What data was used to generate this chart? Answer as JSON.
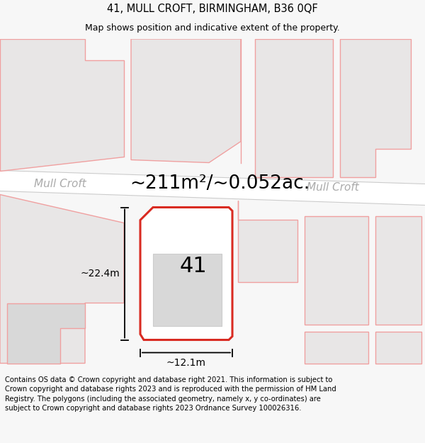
{
  "title_line1": "41, MULL CROFT, BIRMINGHAM, B36 0QF",
  "title_line2": "Map shows position and indicative extent of the property.",
  "area_text": "~211m²/~0.052ac.",
  "label_41": "41",
  "dim_width": "~12.1m",
  "dim_height": "~22.4m",
  "road_label_left": "Mull Croft",
  "road_label_right": "Mull Croft",
  "footer_text": "Contains OS data © Crown copyright and database right 2021. This information is subject to Crown copyright and database rights 2023 and is reproduced with the permission of HM Land Registry. The polygons (including the associated geometry, namely x, y co-ordinates) are subject to Crown copyright and database rights 2023 Ordnance Survey 100026316.",
  "bg_color": "#f7f7f7",
  "map_bg": "#ebebeb",
  "road_color": "#f8f8f8",
  "plot_outline_color": "#d92b22",
  "plot_fill": "#ffffff",
  "house_fill": "#d8d8d8",
  "neighbour_outline_color": "#f0a0a0",
  "neighbour_fill": "#e8e6e6",
  "title_fontsize": 10.5,
  "subtitle_fontsize": 9,
  "label_fontsize": 22,
  "area_fontsize": 19,
  "dim_fontsize": 10,
  "road_label_fontsize": 11,
  "footer_fontsize": 7.2
}
